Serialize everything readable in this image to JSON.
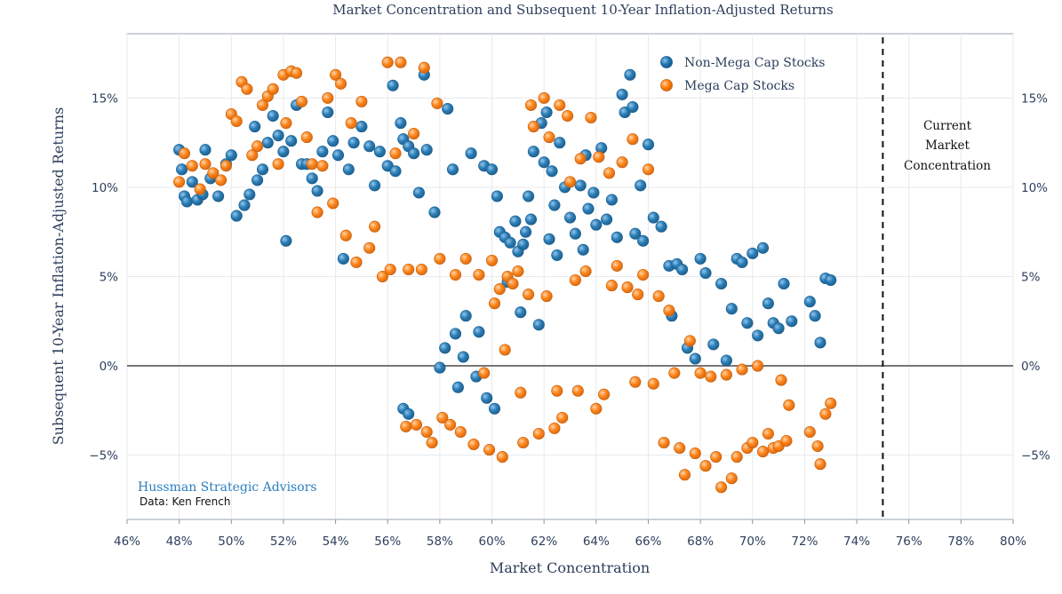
{
  "chart_data": {
    "type": "scatter",
    "title": "Market Concentration and Subsequent 10-Year Inflation-Adjusted Returns",
    "xlabel": "Market Concentration",
    "ylabel": "Subsequent 10-Year Inflation-Adjusted Returns",
    "xlim": [
      46,
      80
    ],
    "ylim": [
      -8.6,
      18.6
    ],
    "x_ticks": [
      46,
      48,
      50,
      52,
      54,
      56,
      58,
      60,
      62,
      64,
      66,
      68,
      70,
      72,
      74,
      76,
      78,
      80
    ],
    "x_tick_labels": [
      "46%",
      "48%",
      "50%",
      "52%",
      "54%",
      "56%",
      "58%",
      "60%",
      "62%",
      "64%",
      "66%",
      "68%",
      "70%",
      "72%",
      "74%",
      "76%",
      "78%",
      "80%"
    ],
    "y_ticks": [
      -5,
      0,
      5,
      10,
      15
    ],
    "y_tick_labels": [
      "−5%",
      "0%",
      "5%",
      "10%",
      "15%"
    ],
    "grid": true,
    "legend_position": "top-right",
    "colors": {
      "non_mega": "#1f77b4",
      "mega": "#ff7f0e",
      "zero_line": "#777777",
      "text": "#2d3e5c"
    },
    "series": [
      {
        "name": "Non-Mega Cap Stocks",
        "color": "#1f77b4",
        "points": [
          [
            48.0,
            12.1
          ],
          [
            48.1,
            11.0
          ],
          [
            48.2,
            9.5
          ],
          [
            48.3,
            9.2
          ],
          [
            48.5,
            10.3
          ],
          [
            48.7,
            9.3
          ],
          [
            48.9,
            9.6
          ],
          [
            49.0,
            12.1
          ],
          [
            49.2,
            10.5
          ],
          [
            49.5,
            9.5
          ],
          [
            49.8,
            11.3
          ],
          [
            50.0,
            11.8
          ],
          [
            50.2,
            8.4
          ],
          [
            50.5,
            9.0
          ],
          [
            50.7,
            9.6
          ],
          [
            50.9,
            13.4
          ],
          [
            51.0,
            10.4
          ],
          [
            51.2,
            11.0
          ],
          [
            51.4,
            12.5
          ],
          [
            51.6,
            14.0
          ],
          [
            51.8,
            12.9
          ],
          [
            52.0,
            12.0
          ],
          [
            52.1,
            7.0
          ],
          [
            52.3,
            12.6
          ],
          [
            52.5,
            14.6
          ],
          [
            52.7,
            11.3
          ],
          [
            52.9,
            11.3
          ],
          [
            53.1,
            10.5
          ],
          [
            53.3,
            9.8
          ],
          [
            53.5,
            12.0
          ],
          [
            53.7,
            14.2
          ],
          [
            53.9,
            12.6
          ],
          [
            54.1,
            11.8
          ],
          [
            54.3,
            6.0
          ],
          [
            54.5,
            11.0
          ],
          [
            54.7,
            12.5
          ],
          [
            55.0,
            13.4
          ],
          [
            55.3,
            12.3
          ],
          [
            55.5,
            10.1
          ],
          [
            55.7,
            12.0
          ],
          [
            56.0,
            11.2
          ],
          [
            56.2,
            15.7
          ],
          [
            56.3,
            10.9
          ],
          [
            56.5,
            13.6
          ],
          [
            56.6,
            12.7
          ],
          [
            56.8,
            12.3
          ],
          [
            57.0,
            11.9
          ],
          [
            57.2,
            9.7
          ],
          [
            56.6,
            -2.4
          ],
          [
            56.8,
            -2.7
          ],
          [
            57.4,
            16.3
          ],
          [
            57.5,
            12.1
          ],
          [
            57.8,
            8.6
          ],
          [
            58.0,
            -0.1
          ],
          [
            58.2,
            1.0
          ],
          [
            58.3,
            14.4
          ],
          [
            58.5,
            11.0
          ],
          [
            58.6,
            1.8
          ],
          [
            58.7,
            -1.2
          ],
          [
            58.9,
            0.5
          ],
          [
            59.0,
            2.8
          ],
          [
            59.2,
            11.9
          ],
          [
            59.4,
            -0.6
          ],
          [
            59.5,
            1.9
          ],
          [
            59.7,
            11.2
          ],
          [
            59.8,
            -1.8
          ],
          [
            60.0,
            11.0
          ],
          [
            60.1,
            -2.4
          ],
          [
            60.2,
            9.5
          ],
          [
            60.3,
            7.5
          ],
          [
            60.5,
            7.2
          ],
          [
            60.6,
            4.7
          ],
          [
            60.7,
            6.9
          ],
          [
            60.9,
            8.1
          ],
          [
            61.0,
            6.4
          ],
          [
            61.1,
            3.0
          ],
          [
            61.2,
            6.8
          ],
          [
            61.3,
            7.5
          ],
          [
            61.4,
            9.5
          ],
          [
            61.5,
            8.2
          ],
          [
            61.6,
            12.0
          ],
          [
            61.8,
            2.3
          ],
          [
            61.9,
            13.6
          ],
          [
            62.0,
            11.4
          ],
          [
            62.1,
            14.2
          ],
          [
            62.2,
            7.1
          ],
          [
            62.3,
            10.9
          ],
          [
            62.4,
            9.0
          ],
          [
            62.5,
            6.2
          ],
          [
            62.6,
            12.5
          ],
          [
            62.8,
            10.0
          ],
          [
            63.0,
            8.3
          ],
          [
            63.2,
            7.4
          ],
          [
            63.4,
            10.1
          ],
          [
            63.5,
            6.5
          ],
          [
            63.6,
            11.8
          ],
          [
            63.7,
            8.8
          ],
          [
            63.9,
            9.7
          ],
          [
            64.0,
            7.9
          ],
          [
            64.2,
            12.2
          ],
          [
            64.4,
            8.2
          ],
          [
            64.6,
            9.3
          ],
          [
            64.8,
            7.2
          ],
          [
            65.0,
            15.2
          ],
          [
            65.1,
            14.2
          ],
          [
            65.3,
            16.3
          ],
          [
            65.4,
            14.5
          ],
          [
            65.5,
            7.4
          ],
          [
            65.7,
            10.1
          ],
          [
            65.8,
            7.0
          ],
          [
            66.0,
            12.4
          ],
          [
            66.2,
            8.3
          ],
          [
            66.5,
            7.8
          ],
          [
            66.8,
            5.6
          ],
          [
            66.9,
            2.8
          ],
          [
            67.1,
            5.7
          ],
          [
            67.3,
            5.4
          ],
          [
            67.5,
            1.0
          ],
          [
            67.8,
            0.4
          ],
          [
            68.0,
            6.0
          ],
          [
            68.2,
            5.2
          ],
          [
            68.5,
            1.2
          ],
          [
            68.8,
            4.6
          ],
          [
            69.0,
            0.3
          ],
          [
            69.2,
            3.2
          ],
          [
            69.4,
            6.0
          ],
          [
            69.6,
            5.8
          ],
          [
            69.8,
            2.4
          ],
          [
            70.0,
            6.3
          ],
          [
            70.2,
            1.7
          ],
          [
            70.4,
            6.6
          ],
          [
            70.6,
            3.5
          ],
          [
            70.8,
            2.4
          ],
          [
            71.0,
            2.1
          ],
          [
            71.2,
            4.6
          ],
          [
            71.5,
            2.5
          ],
          [
            72.2,
            3.6
          ],
          [
            72.4,
            2.8
          ],
          [
            72.6,
            1.3
          ],
          [
            72.8,
            4.9
          ],
          [
            73.0,
            4.8
          ]
        ]
      },
      {
        "name": "Mega Cap Stocks",
        "color": "#ff7f0e",
        "points": [
          [
            48.0,
            10.3
          ],
          [
            48.2,
            11.9
          ],
          [
            48.5,
            11.2
          ],
          [
            48.8,
            9.9
          ],
          [
            49.0,
            11.3
          ],
          [
            49.3,
            10.8
          ],
          [
            49.6,
            10.4
          ],
          [
            49.8,
            11.2
          ],
          [
            50.0,
            14.1
          ],
          [
            50.2,
            13.7
          ],
          [
            50.4,
            15.9
          ],
          [
            50.6,
            15.5
          ],
          [
            50.8,
            11.8
          ],
          [
            51.0,
            12.3
          ],
          [
            51.2,
            14.6
          ],
          [
            51.4,
            15.1
          ],
          [
            51.6,
            15.5
          ],
          [
            51.8,
            11.3
          ],
          [
            52.0,
            16.3
          ],
          [
            52.1,
            13.6
          ],
          [
            52.3,
            16.5
          ],
          [
            52.5,
            16.4
          ],
          [
            52.7,
            14.8
          ],
          [
            52.9,
            12.8
          ],
          [
            53.1,
            11.3
          ],
          [
            53.3,
            8.6
          ],
          [
            53.5,
            11.2
          ],
          [
            53.7,
            15.0
          ],
          [
            53.9,
            9.1
          ],
          [
            54.0,
            16.3
          ],
          [
            54.2,
            15.8
          ],
          [
            54.4,
            7.3
          ],
          [
            54.6,
            13.6
          ],
          [
            54.8,
            5.8
          ],
          [
            55.0,
            14.8
          ],
          [
            55.3,
            6.6
          ],
          [
            55.5,
            7.8
          ],
          [
            55.8,
            5.0
          ],
          [
            56.0,
            17.0
          ],
          [
            56.1,
            5.4
          ],
          [
            56.3,
            11.9
          ],
          [
            56.5,
            17.0
          ],
          [
            56.7,
            -3.4
          ],
          [
            56.8,
            5.4
          ],
          [
            57.0,
            13.0
          ],
          [
            57.1,
            -3.3
          ],
          [
            57.3,
            5.4
          ],
          [
            57.4,
            16.7
          ],
          [
            57.5,
            -3.7
          ],
          [
            57.7,
            -4.3
          ],
          [
            57.9,
            14.7
          ],
          [
            58.0,
            6.0
          ],
          [
            58.1,
            -2.9
          ],
          [
            58.4,
            -3.3
          ],
          [
            58.6,
            5.1
          ],
          [
            58.8,
            -3.7
          ],
          [
            59.0,
            6.0
          ],
          [
            59.3,
            -4.4
          ],
          [
            59.5,
            5.1
          ],
          [
            59.7,
            -0.4
          ],
          [
            59.9,
            -4.7
          ],
          [
            60.0,
            5.9
          ],
          [
            60.1,
            3.5
          ],
          [
            60.3,
            4.3
          ],
          [
            60.4,
            -5.1
          ],
          [
            60.5,
            0.9
          ],
          [
            60.6,
            5.0
          ],
          [
            60.8,
            4.6
          ],
          [
            61.0,
            5.3
          ],
          [
            61.1,
            -1.5
          ],
          [
            61.2,
            -4.3
          ],
          [
            61.4,
            4.0
          ],
          [
            61.5,
            14.6
          ],
          [
            61.6,
            13.4
          ],
          [
            61.8,
            -3.8
          ],
          [
            62.0,
            15.0
          ],
          [
            62.1,
            3.9
          ],
          [
            62.2,
            12.8
          ],
          [
            62.4,
            -3.5
          ],
          [
            62.5,
            -1.4
          ],
          [
            62.6,
            14.6
          ],
          [
            62.7,
            -2.9
          ],
          [
            62.9,
            14.0
          ],
          [
            63.0,
            10.3
          ],
          [
            63.2,
            4.8
          ],
          [
            63.3,
            -1.4
          ],
          [
            63.4,
            11.6
          ],
          [
            63.6,
            5.3
          ],
          [
            63.8,
            13.9
          ],
          [
            64.0,
            -2.4
          ],
          [
            64.1,
            11.7
          ],
          [
            64.3,
            -1.6
          ],
          [
            64.5,
            10.8
          ],
          [
            64.6,
            4.5
          ],
          [
            64.8,
            5.6
          ],
          [
            65.0,
            11.4
          ],
          [
            65.2,
            4.4
          ],
          [
            65.4,
            12.7
          ],
          [
            65.5,
            -0.9
          ],
          [
            65.6,
            4.0
          ],
          [
            65.8,
            5.1
          ],
          [
            66.0,
            11.0
          ],
          [
            66.2,
            -1.0
          ],
          [
            66.4,
            3.9
          ],
          [
            66.6,
            -4.3
          ],
          [
            66.8,
            3.1
          ],
          [
            67.0,
            -0.4
          ],
          [
            67.2,
            -4.6
          ],
          [
            67.4,
            -6.1
          ],
          [
            67.6,
            1.4
          ],
          [
            67.8,
            -4.9
          ],
          [
            68.0,
            -0.4
          ],
          [
            68.2,
            -5.6
          ],
          [
            68.4,
            -0.6
          ],
          [
            68.6,
            -5.1
          ],
          [
            68.8,
            -6.8
          ],
          [
            69.0,
            -0.5
          ],
          [
            69.2,
            -6.3
          ],
          [
            69.4,
            -5.1
          ],
          [
            69.6,
            -0.2
          ],
          [
            69.8,
            -4.6
          ],
          [
            70.0,
            -4.3
          ],
          [
            70.2,
            0.0
          ],
          [
            70.4,
            -4.8
          ],
          [
            70.6,
            -3.8
          ],
          [
            70.8,
            -4.6
          ],
          [
            71.0,
            -4.5
          ],
          [
            71.1,
            -0.8
          ],
          [
            71.3,
            -4.2
          ],
          [
            71.4,
            -2.2
          ],
          [
            72.2,
            -3.7
          ],
          [
            72.5,
            -4.5
          ],
          [
            72.6,
            -5.5
          ],
          [
            72.8,
            -2.7
          ],
          [
            73.0,
            -2.1
          ]
        ]
      }
    ],
    "annotations": {
      "vline_x": 75,
      "vline_label": [
        "Current",
        "Market",
        "Concentration"
      ],
      "brand": "Hussman Strategic Advisors",
      "source": "Data: Ken French"
    }
  }
}
